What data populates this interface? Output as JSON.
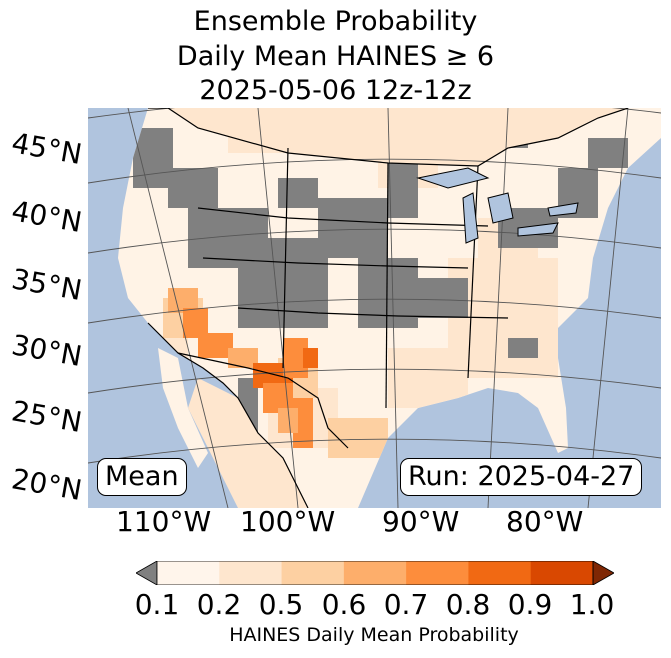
{
  "title": {
    "line1": "Ensemble Probability",
    "line2": "Daily Mean HAINES ≥ 6",
    "line3": "2025-05-06 12z-12z"
  },
  "map": {
    "latitude_labels": [
      "45°N",
      "40°N",
      "35°N",
      "30°N",
      "25°N",
      "20°N"
    ],
    "longitude_labels": [
      "110°W",
      "100°W",
      "90°W",
      "80°W"
    ],
    "left_box": "Mean",
    "right_box": "Run: 2025-04-27",
    "colors": {
      "ocean": "#b0c4de",
      "missing_gray": "#808080",
      "land_background": "#fff3e6"
    }
  },
  "colorbar": {
    "title": "HAINES Daily Mean Probability",
    "ticks": [
      "0.1",
      "0.2",
      "0.5",
      "0.6",
      "0.7",
      "0.8",
      "0.9",
      "1.0"
    ],
    "under_color": "#808080",
    "over_color": "#7f2704",
    "colors": [
      "#fff5eb",
      "#fee6ce",
      "#fdd0a2",
      "#fdae6b",
      "#fd8d3c",
      "#f16913",
      "#d94801"
    ]
  }
}
